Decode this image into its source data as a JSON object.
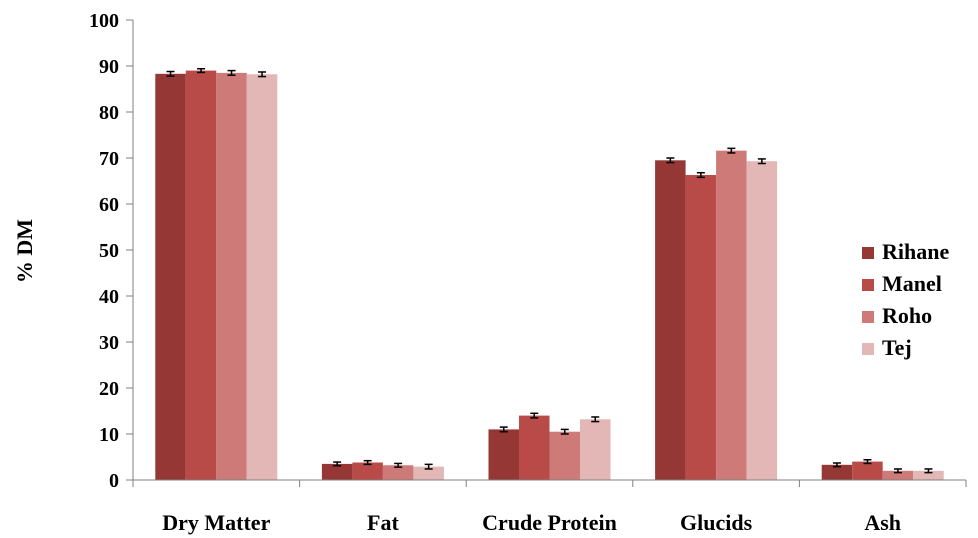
{
  "chart_data": {
    "type": "bar",
    "title": "",
    "xlabel": "",
    "ylabel": "% DM",
    "ylim": [
      0,
      100
    ],
    "yticks": [
      0,
      10,
      20,
      30,
      40,
      50,
      60,
      70,
      80,
      90,
      100
    ],
    "grid": false,
    "legend_position": "right",
    "categories": [
      "Dry Matter",
      "Fat",
      "Crude Protein",
      "Glucids",
      "Ash"
    ],
    "series": [
      {
        "name": "Rihane",
        "color": "#953735",
        "values": [
          88.3,
          3.5,
          11.0,
          69.5,
          3.3
        ],
        "errors": [
          0.5,
          0.4,
          0.5,
          0.5,
          0.4
        ]
      },
      {
        "name": "Manel",
        "color": "#b84a47",
        "values": [
          89.0,
          3.8,
          14.0,
          66.3,
          4.0
        ],
        "errors": [
          0.4,
          0.4,
          0.5,
          0.5,
          0.4
        ]
      },
      {
        "name": "Roho",
        "color": "#cd7a78",
        "values": [
          88.5,
          3.2,
          10.5,
          71.6,
          2.0
        ],
        "errors": [
          0.5,
          0.4,
          0.5,
          0.5,
          0.4
        ]
      },
      {
        "name": "Tej",
        "color": "#e2b7b6",
        "values": [
          88.2,
          2.9,
          13.2,
          69.3,
          2.0
        ],
        "errors": [
          0.5,
          0.5,
          0.5,
          0.5,
          0.4
        ]
      }
    ]
  }
}
